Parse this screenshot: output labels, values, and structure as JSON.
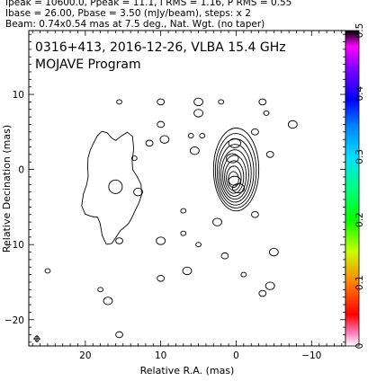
{
  "header": {
    "line1": "Ipeak = 10600.0, Ppeak = 11.1, I RMS = 1.16, P RMS = 0.55",
    "line2": "Ibase = 26.00, Pbase = 3.50 (mJy/beam), steps: x 2",
    "line3": "Beam: 0.74x0.54 mas at 7.5 deg., Nat. Wgt. (no taper)"
  },
  "chart_data": {
    "type": "contour",
    "title": "0316+413, 2016-12-26, VLBA 15.4 GHz",
    "subtitle": "MOJAVE Program",
    "xlabel": "Relative R.A. (mas)",
    "ylabel": "Relative Decination (mas)",
    "xlim": [
      27.5,
      -14.5
    ],
    "ylim": [
      -23.5,
      18.5
    ],
    "xticks": [
      20,
      10,
      0,
      -10
    ],
    "yticks": [
      10,
      0,
      -10,
      -20
    ],
    "colorbar": {
      "range": [
        0,
        0.5
      ],
      "ticks": [
        "0",
        "0.1",
        "0.2",
        "0.3",
        "0.4",
        "0.5"
      ]
    },
    "core": {
      "x": 0.0,
      "y": 0.0,
      "levels": 9
    },
    "jet_components": [
      {
        "x": 0.2,
        "y": 3.5
      },
      {
        "x": 0.5,
        "y": 1.5
      },
      {
        "x": -0.3,
        "y": -2.5
      },
      {
        "x": 0.2,
        "y": -1.5
      }
    ],
    "lobe": {
      "x": 16.5,
      "y": -2.0,
      "levels": 2
    },
    "beam": {
      "major": 0.74,
      "minor": 0.54,
      "pa": 7.5
    },
    "noise_blobs": [
      [
        15.5,
        9.0
      ],
      [
        10.0,
        9.0
      ],
      [
        5.0,
        9.0
      ],
      [
        2.0,
        9.0
      ],
      [
        -3.5,
        9.0
      ],
      [
        5.0,
        7.5
      ],
      [
        -4.0,
        7.5
      ],
      [
        10.0,
        6.0
      ],
      [
        -7.5,
        6.0
      ],
      [
        4.5,
        4.5
      ],
      [
        -2.5,
        5.0
      ],
      [
        9.5,
        4.0
      ],
      [
        6.0,
        4.5
      ],
      [
        11.5,
        3.5
      ],
      [
        5.5,
        2.5
      ],
      [
        13.5,
        1.5
      ],
      [
        -4.5,
        2.0
      ],
      [
        13.0,
        -3.0
      ],
      [
        7.0,
        -5.5
      ],
      [
        -2.5,
        -6.0
      ],
      [
        2.5,
        -7.0
      ],
      [
        7.0,
        -8.5
      ],
      [
        15.5,
        -9.5
      ],
      [
        10.0,
        -9.5
      ],
      [
        5.0,
        -10.0
      ],
      [
        1.5,
        -11.5
      ],
      [
        -5.0,
        -11.0
      ],
      [
        25.0,
        -13.5
      ],
      [
        10.0,
        -14.5
      ],
      [
        6.5,
        -13.5
      ],
      [
        -1.0,
        -14.0
      ],
      [
        -3.5,
        -16.5
      ],
      [
        17.0,
        -17.5
      ],
      [
        18.0,
        -16.0
      ],
      [
        15.5,
        -22.0
      ],
      [
        -4.5,
        -15.5
      ]
    ]
  }
}
